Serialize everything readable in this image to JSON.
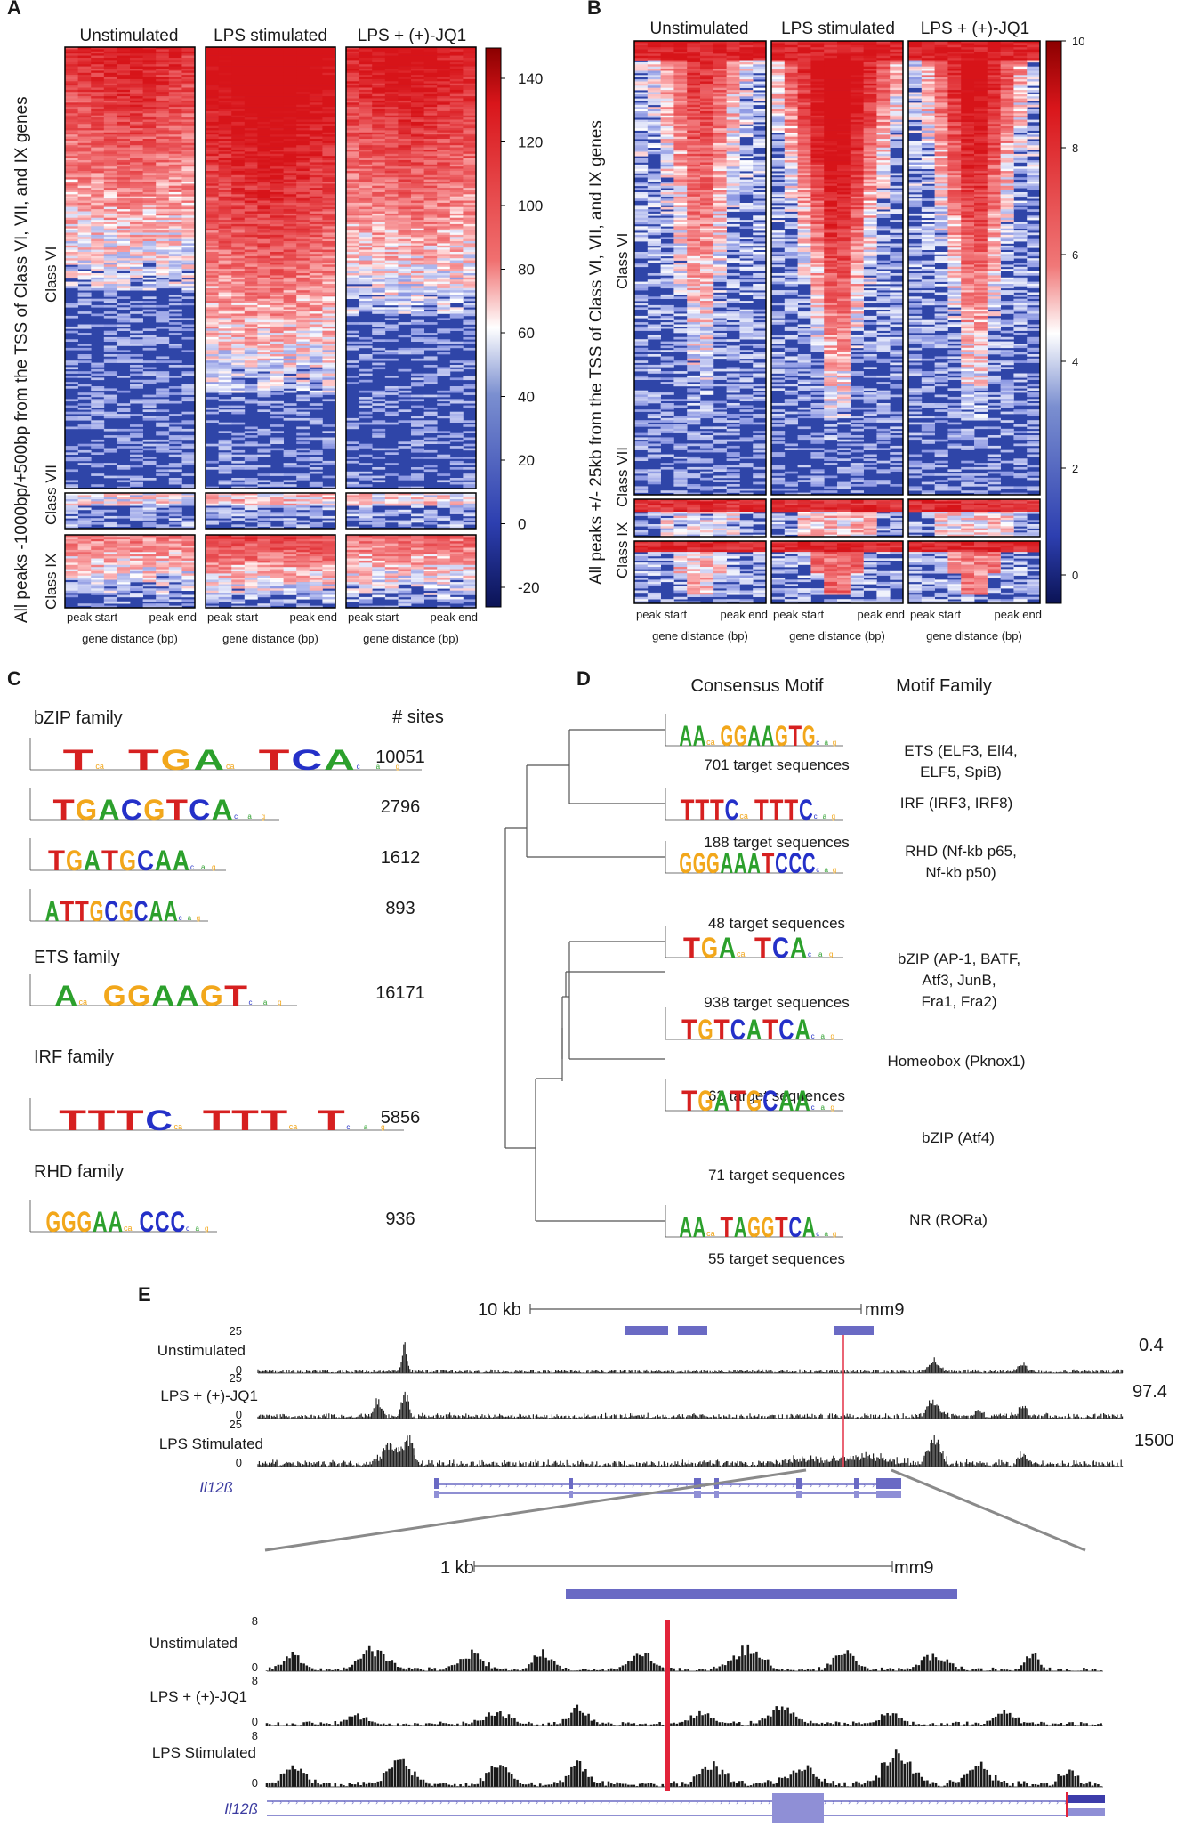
{
  "panel_labels": [
    "A",
    "B",
    "C",
    "D",
    "E"
  ],
  "panelA": {
    "conditions": [
      "Unstimulated",
      "LPS stimulated",
      "LPS + (+)-JQ1"
    ],
    "y_axis_label": "All peaks -1000bp/+500bp from the TSS of Class VI, VII, and IX genes",
    "row_groups": [
      "Class VI",
      "Class VII",
      "Class IX"
    ],
    "x_ticks": [
      "peak start",
      "peak end"
    ],
    "x_label": "gene distance (bp)",
    "colorbar_ticks": [
      "140",
      "120",
      "100",
      "80",
      "60",
      "40",
      "20",
      "0",
      "-20"
    ]
  },
  "panelB": {
    "conditions": [
      "Unstimulated",
      "LPS stimulated",
      "LPS + (+)-JQ1"
    ],
    "y_axis_label": "All peaks +/- 25kb from the TSS of Class VI, VII, and IX genes",
    "row_groups": [
      "Class VI",
      "Class VII",
      "Class IX"
    ],
    "x_ticks": [
      "peak start",
      "peak end"
    ],
    "x_label": "gene distance (bp)",
    "colorbar_ticks": [
      "10",
      "8",
      "6",
      "4",
      "2",
      "0"
    ]
  },
  "panelC": {
    "sites_header": "# sites",
    "families": [
      {
        "name": "bZIP family",
        "motifs": [
          {
            "logo": "T TGA TCA",
            "sites": "10051"
          },
          {
            "logo": "TGACGTCA",
            "sites": "2796"
          },
          {
            "logo": "TGATGCAA",
            "sites": "1612"
          },
          {
            "logo": "ATTGCGCAA",
            "sites": "893"
          }
        ]
      },
      {
        "name": "ETS family",
        "motifs": [
          {
            "logo": "A GGAAGT",
            "sites": "16171"
          }
        ]
      },
      {
        "name": "IRF family",
        "motifs": [
          {
            "logo": "TTTC TTT T",
            "sites": "5856"
          }
        ]
      },
      {
        "name": "RHD family",
        "motifs": [
          {
            "logo": "GGGAA CCC",
            "sites": "936"
          }
        ]
      }
    ]
  },
  "panelD": {
    "col_headers": [
      "Consensus Motif",
      "Motif Family"
    ],
    "motifs": [
      {
        "logo": "AA GGAAGTG",
        "targets": "701 target sequences",
        "family": [
          "ETS (ELF3, Elf4,",
          "ELF5, SpiB)"
        ]
      },
      {
        "logo": "TTTC TTTC",
        "targets": "188 target sequences",
        "family": [
          "IRF (IRF3, IRF8)"
        ]
      },
      {
        "logo": "GGGAAATCCC",
        "targets": "48 target sequences",
        "family": [
          "RHD (Nf-kb p65,",
          "Nf-kb p50)"
        ]
      },
      {
        "logo": "TGA TCA",
        "targets": "938 target sequences",
        "family": [
          "bZIP (AP-1, BATF,",
          "Atf3, JunB,",
          "Fra1, Fra2)"
        ]
      },
      {
        "logo": "TGTCATCA",
        "targets": "63 target sequences",
        "family": [
          "Homeobox (Pknox1)"
        ]
      },
      {
        "logo": "TGATGCAA",
        "targets": "71 target sequences",
        "family": [
          "bZIP (Atf4)"
        ]
      },
      {
        "logo": "AA TAGGTCA",
        "targets": "55 target sequences",
        "family": [
          "NR (RORa)"
        ]
      }
    ]
  },
  "panelE": {
    "upper": {
      "scale_label": "10 kb",
      "assembly": "mm9",
      "tracks": [
        {
          "name": "Unstimulated",
          "ymax": "25",
          "ymin": "0",
          "value": "0.4"
        },
        {
          "name": "LPS + (+)-JQ1",
          "ymax": "25",
          "ymin": "0",
          "value": "97.4"
        },
        {
          "name": "LPS Stimulated",
          "ymax": "25",
          "ymin": "0",
          "value": "1500"
        }
      ],
      "gene": "Il12ß"
    },
    "lower": {
      "scale_label": "1 kb",
      "assembly": "mm9",
      "tracks": [
        {
          "name": "Unstimulated",
          "ymax": "8",
          "ymin": "0"
        },
        {
          "name": "LPS + (+)-JQ1",
          "ymax": "8",
          "ymin": "0"
        },
        {
          "name": "LPS Stimulated",
          "ymax": "8",
          "ymin": "0"
        }
      ],
      "gene": "Il12ß"
    }
  }
}
